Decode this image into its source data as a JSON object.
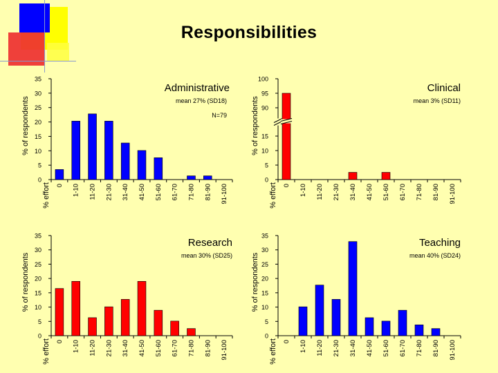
{
  "title": "Responsibilities",
  "colors": {
    "background": "#ffffb0",
    "red": "#ff0000",
    "blue": "#0000ff"
  },
  "chart_data": [
    {
      "type": "bar",
      "title": "Administrative",
      "subtitle": "mean 27% (SD18)",
      "annotation": "N=79",
      "ylabel": "% of respondents",
      "xlabel": "% effort",
      "categories": [
        "0",
        "1-10",
        "11-20",
        "21-30",
        "31-40",
        "41-50",
        "51-60",
        "61-70",
        "71-80",
        "81-90",
        "91-100"
      ],
      "values": [
        3.5,
        20.3,
        22.8,
        20.3,
        12.7,
        10.1,
        7.6,
        0,
        1.3,
        1.3,
        0
      ],
      "colors": [
        "blue",
        "blue",
        "blue",
        "blue",
        "blue",
        "blue",
        "blue",
        "blue",
        "blue",
        "blue",
        "blue"
      ],
      "ylim": [
        0,
        35
      ],
      "yticks": [
        "0",
        "5",
        "10",
        "15",
        "20",
        "25",
        "30",
        "35"
      ]
    },
    {
      "type": "bar",
      "title": "Clinical",
      "subtitle": "mean 3% (SD11)",
      "ylabel": "% of respondents",
      "xlabel": "% effort",
      "categories": [
        "0",
        "1-10",
        "11-20",
        "21-30",
        "31-40",
        "41-50",
        "51-60",
        "61-70",
        "71-80",
        "81-90",
        "91-100"
      ],
      "values": [
        95,
        0,
        0,
        0,
        2.5,
        0,
        2.5,
        0,
        0,
        0,
        0
      ],
      "colors": [
        "red",
        "red",
        "red",
        "red",
        "red",
        "red",
        "red",
        "red",
        "red",
        "red",
        "red"
      ],
      "ylim": [
        0,
        100
      ],
      "axis_break": [
        15,
        90
      ],
      "yticks": [
        "0",
        "5",
        "10",
        "15",
        "90",
        "95",
        "100"
      ]
    },
    {
      "type": "bar",
      "title": "Research",
      "subtitle": "mean 30% (SD25)",
      "ylabel": "% of respondents",
      "xlabel": "% effort",
      "categories": [
        "0",
        "1-10",
        "11-20",
        "21-30",
        "31-40",
        "41-50",
        "51-60",
        "61-70",
        "71-80",
        "81-90",
        "91-100"
      ],
      "values": [
        16.5,
        19,
        6.3,
        10.1,
        12.7,
        19,
        8.9,
        5.1,
        2.5,
        0,
        0
      ],
      "colors": [
        "red",
        "red",
        "red",
        "red",
        "red",
        "red",
        "red",
        "red",
        "red",
        "red",
        "red"
      ],
      "ylim": [
        0,
        35
      ],
      "yticks": [
        "0",
        "5",
        "10",
        "15",
        "20",
        "25",
        "30",
        "35"
      ]
    },
    {
      "type": "bar",
      "title": "Teaching",
      "subtitle": "mean 40% (SD24)",
      "ylabel": "% of respondents",
      "xlabel": "% effort",
      "categories": [
        "0",
        "1-10",
        "11-20",
        "21-30",
        "31-40",
        "41-50",
        "51-60",
        "61-70",
        "71-80",
        "81-90",
        "91-100"
      ],
      "values": [
        0,
        10.1,
        17.7,
        12.7,
        32.9,
        6.3,
        5.1,
        8.9,
        3.8,
        2.5,
        0
      ],
      "colors": [
        "blue",
        "blue",
        "blue",
        "blue",
        "blue",
        "blue",
        "blue",
        "blue",
        "blue",
        "blue",
        "blue"
      ],
      "ylim": [
        0,
        35
      ],
      "yticks": [
        "0",
        "5",
        "10",
        "15",
        "20",
        "25",
        "30",
        "35"
      ]
    }
  ]
}
